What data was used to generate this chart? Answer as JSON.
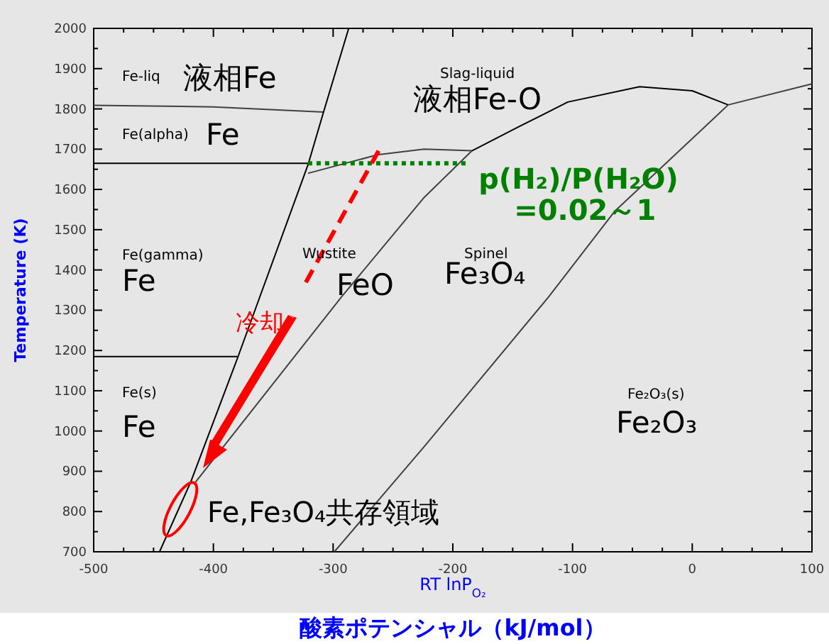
{
  "chart_data": {
    "type": "line",
    "xlabel": "RT lnP$_{O₂}$",
    "ylabel": "Temperature (K)",
    "xlim": [
      -500,
      100
    ],
    "ylim": [
      700,
      2000
    ],
    "xticks": [
      -500,
      {
        "value": -475,
        "label": null
      },
      {
        "value": -450,
        "label": null
      },
      {
        "value": -425,
        "label": null
      },
      -400,
      {
        "value": -375,
        "label": null
      },
      {
        "value": -350,
        "label": null
      },
      {
        "value": -325,
        "label": null
      },
      -300,
      {
        "value": -275,
        "label": null
      },
      {
        "value": -250,
        "label": null
      },
      {
        "value": -225,
        "label": null
      },
      -200,
      {
        "value": -175,
        "label": null
      },
      {
        "value": -150,
        "label": null
      },
      {
        "value": -125,
        "label": null
      },
      -100,
      {
        "value": -75,
        "label": null
      },
      {
        "value": -50,
        "label": null
      },
      {
        "value": -25,
        "label": null
      },
      0,
      {
        "value": 25,
        "label": null
      },
      {
        "value": 50,
        "label": null
      },
      {
        "value": 75,
        "label": null
      },
      100
    ],
    "yticks": [
      700,
      {
        "value": 750,
        "label": null
      },
      800,
      {
        "value": 850,
        "label": null
      },
      900,
      {
        "value": 950,
        "label": null
      },
      1000,
      {
        "value": 1050,
        "label": null
      },
      1100,
      {
        "value": 1150,
        "label": null
      },
      1200,
      {
        "value": 1250,
        "label": null
      },
      1300,
      {
        "value": 1350,
        "label": null
      },
      1400,
      {
        "value": 1450,
        "label": null
      },
      1500,
      {
        "value": 1550,
        "label": null
      },
      1600,
      {
        "value": 1650,
        "label": null
      },
      1700,
      {
        "value": 1750,
        "label": null
      },
      1800,
      {
        "value": 1850,
        "label": null
      },
      1900,
      {
        "value": 1950,
        "label": null
      },
      2000
    ],
    "grid": false,
    "series": [
      {
        "color": "#404040",
        "x": [
          -500,
          -400,
          -308
        ],
        "values": [
          1809,
          1805,
          1792
        ]
      },
      {
        "color": "#000000",
        "x": [
          -500,
          -321
        ],
        "values": [
          1665,
          1665
        ]
      },
      {
        "color": "#000000",
        "x": [
          -500,
          -380
        ],
        "values": [
          1185,
          1185
        ]
      },
      {
        "color": "#000000",
        "x": [
          -445,
          -419,
          -380,
          -321,
          -308,
          -287
        ],
        "values": [
          700,
          873,
          1180,
          1661,
          1792,
          2000
        ]
      },
      {
        "color": "#404040",
        "x": [
          -415,
          -293,
          -224,
          -184
        ],
        "values": [
          873,
          1333,
          1580,
          1696
        ]
      },
      {
        "color": "#404040",
        "x": [
          -321,
          -263,
          -224,
          -184
        ],
        "values": [
          1640,
          1686,
          1700,
          1696
        ]
      },
      {
        "color": "#000000",
        "x": [
          -184,
          -144,
          -104,
          -44,
          0,
          30
        ],
        "values": [
          1696,
          1757,
          1817,
          1855,
          1845,
          1810
        ]
      },
      {
        "color": "#404040",
        "x": [
          30,
          100
        ],
        "values": [
          1810,
          1862
        ]
      },
      {
        "color": "#404040",
        "x": [
          -299,
          -224,
          -120,
          -65,
          30
        ],
        "values": [
          700,
          961,
          1333,
          1545,
          1810
        ]
      },
      {
        "name": "p(H₂)/P(H₂O)\n=0.02～1",
        "color": "#008000",
        "line_style": "dotted",
        "x": [
          -321,
          -188
        ],
        "values": [
          1665,
          1665
        ]
      },
      {
        "color": "#ff0000",
        "line_style": "dashed",
        "x": [
          -262,
          -323
        ],
        "values": [
          1696,
          1368
        ]
      }
    ],
    "annotations": [
      "Fe-liq",
      "液相Fe",
      "Fe(alpha)",
      "Fe",
      "Fe(gamma)",
      "Fe",
      "Fe(s)",
      "Fe",
      "Slag-liquid",
      "液相Fe-O",
      "Wustite",
      "FeO",
      "Spinel",
      "Fe₃O₄",
      "Fe₂O₃(s)",
      "Fe₂O₃",
      "冷却",
      "Fe,Fe₃O₄共存領域",
      "酸素ポテンシャル（kJ/mol）"
    ]
  }
}
